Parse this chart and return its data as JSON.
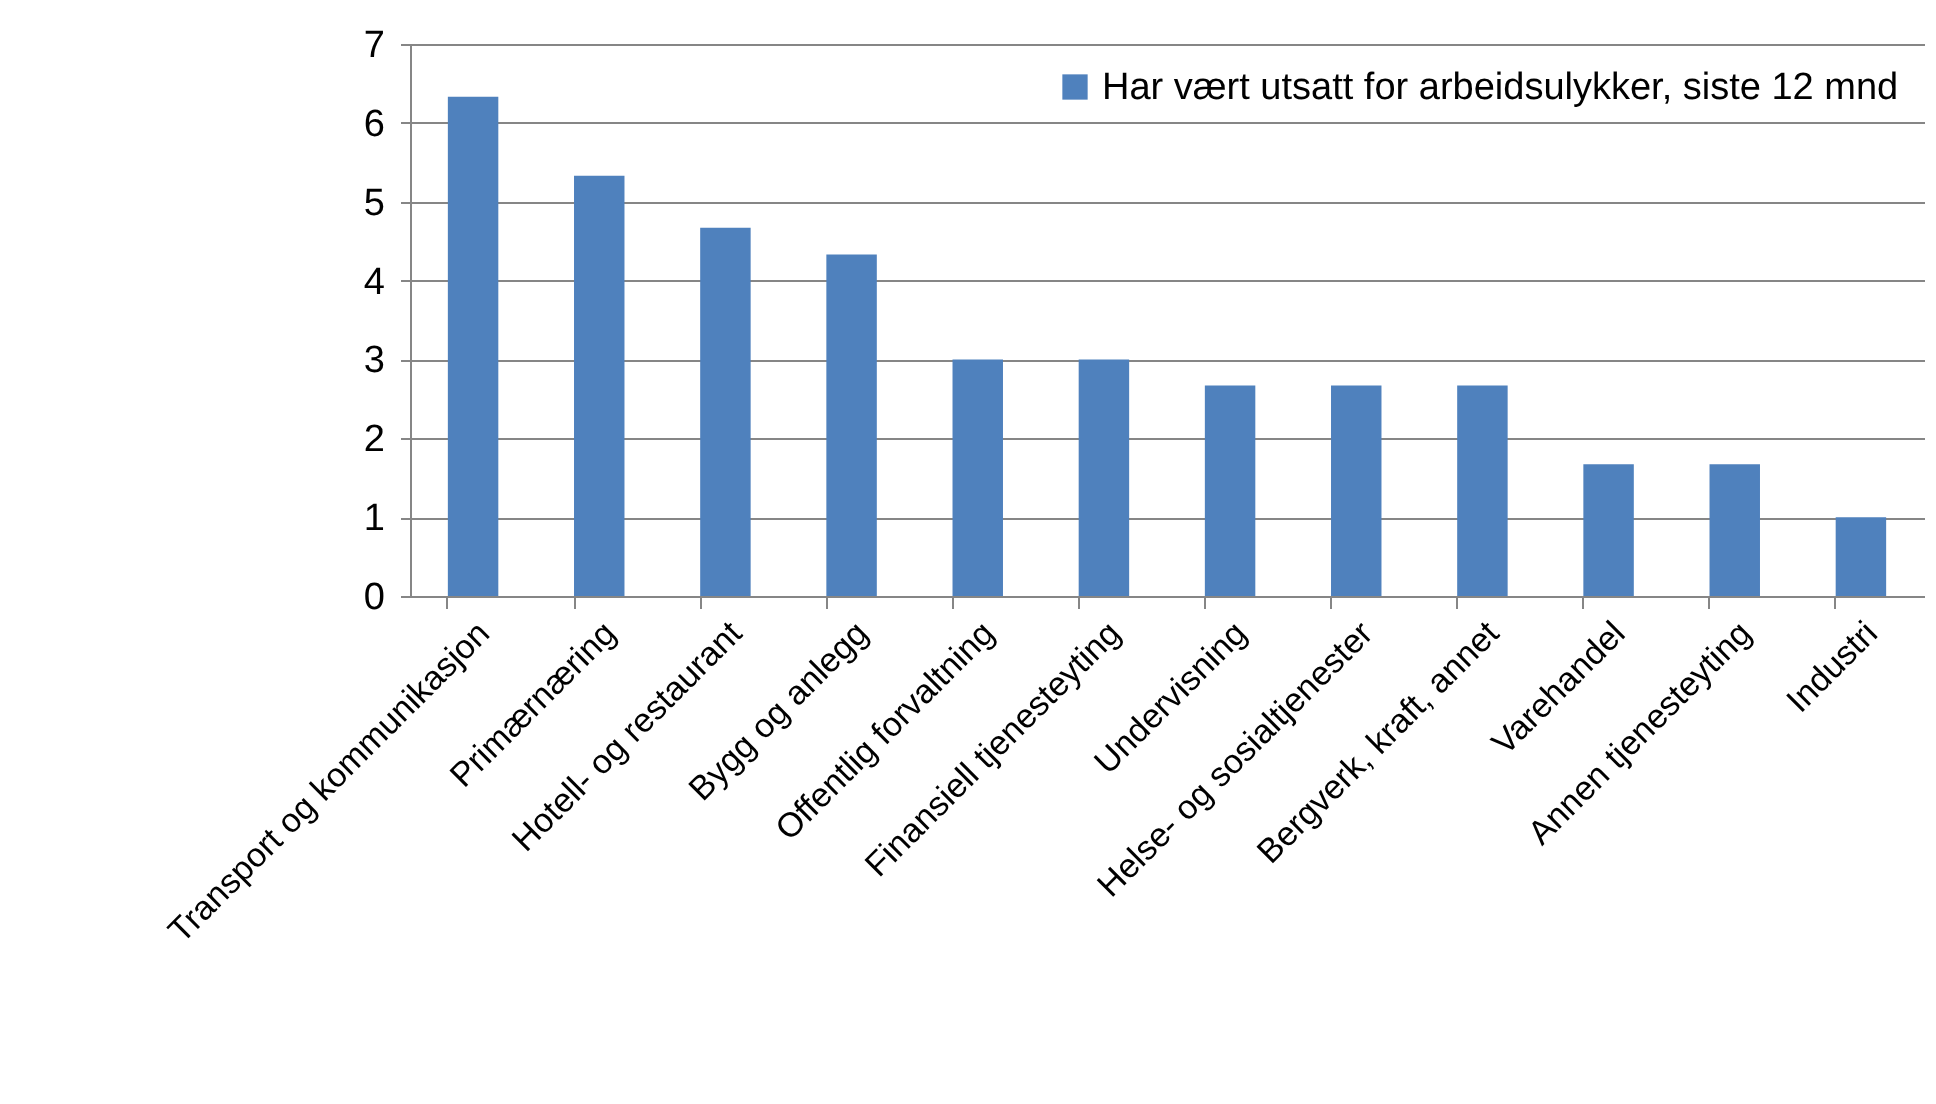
{
  "chart_data": {
    "type": "bar",
    "categories": [
      "Transport og kommunikasjon",
      "Primærnæring",
      "Hotell- og restaurant",
      "Bygg og anlegg",
      "Offentlig forvaltning",
      "Finansiell tjenesteyting",
      "Undervisning",
      "Helse- og sosialtjenester",
      "Bergverk, kraft, annet",
      "Varehandel",
      "Annen tjenesteyting",
      "Industri"
    ],
    "series": [
      {
        "name": "Har vært utsatt for arbeidsulykker, siste 12 mnd",
        "color": "#4f81bd",
        "values": [
          6.33,
          5.33,
          4.67,
          4.33,
          3,
          3,
          2.67,
          2.67,
          2.67,
          1.67,
          1.67,
          1
        ]
      }
    ],
    "ylim": [
      0,
      7
    ],
    "yticks": [
      0,
      1,
      2,
      3,
      4,
      5,
      6,
      7
    ],
    "grid": "y",
    "legend": "top right"
  }
}
